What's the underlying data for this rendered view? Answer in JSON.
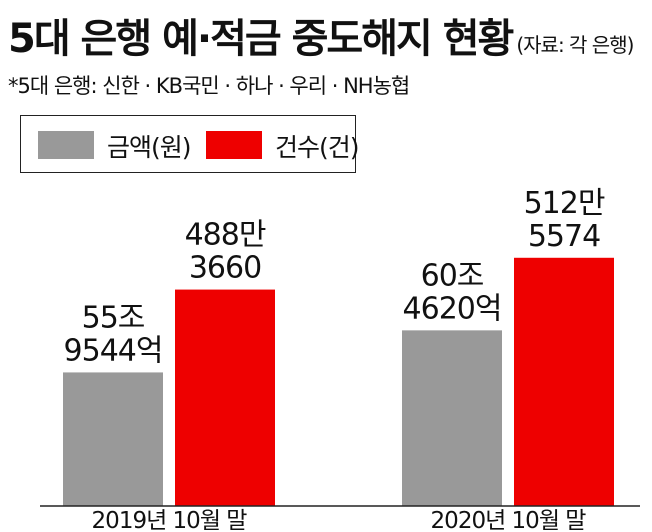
{
  "header": {
    "title": "5대 은행 예·적금 중도해지 현황",
    "source": "(자료: 각 은행)",
    "note": "*5대 은행: 신한 · KB국민 · 하나 · 우리 · NH농협"
  },
  "colors": {
    "amount": "#999999",
    "count": "#ee0000"
  },
  "chart_data": {
    "type": "bar",
    "categories": [
      "2019년 10월 말",
      "2020년 10월 말"
    ],
    "series": [
      {
        "name": "금액(원)",
        "values": [
          559544,
          604620
        ],
        "unit": "억원",
        "labels": [
          [
            "55조",
            "9544억"
          ],
          [
            "60조",
            "4620억"
          ]
        ]
      },
      {
        "name": "건수(건)",
        "values": [
          4883660,
          5125574
        ],
        "unit": "건",
        "labels": [
          [
            "488만",
            "3660"
          ],
          [
            "512만",
            "5574"
          ]
        ]
      }
    ],
    "legend": "top-left",
    "grid": false
  }
}
